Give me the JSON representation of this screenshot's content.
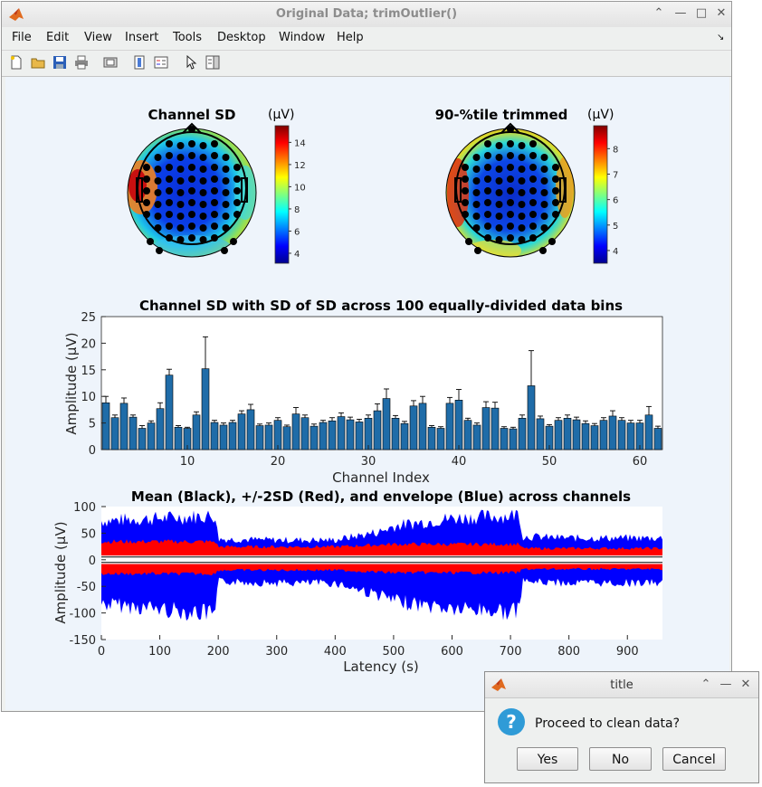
{
  "window": {
    "title": "Original Data; trimOutlier()",
    "menu": [
      "File",
      "Edit",
      "View",
      "Insert",
      "Tools",
      "Desktop",
      "Window",
      "Help"
    ],
    "toolbar_icons": [
      "new-figure-icon",
      "open-file-icon",
      "save-icon",
      "print-icon",
      "print-preview-icon",
      "colorbar-icon",
      "legend-icon",
      "pointer-icon",
      "property-editor-icon"
    ],
    "title_buttons": [
      "minimize-icon",
      "restore-icon",
      "maximize-icon",
      "close-icon"
    ]
  },
  "topo_left": {
    "title": "Channel SD",
    "unit": "(μV)",
    "colorbar_ticks": [
      "14",
      "12",
      "10",
      "8",
      "6",
      "4"
    ]
  },
  "topo_right": {
    "title": "90-%tile trimmed",
    "unit": "(μV)",
    "colorbar_ticks": [
      "8",
      "7",
      "6",
      "5",
      "4"
    ]
  },
  "chart_data": [
    {
      "type": "bar",
      "title": "Channel SD with SD of SD across 100 equally-divided data bins",
      "xlabel": "Channel Index",
      "ylabel": "Amplitude (μV)",
      "xlim": [
        0.5,
        62.5
      ],
      "ylim": [
        0,
        25
      ],
      "xticks": [
        10,
        20,
        30,
        40,
        50,
        60
      ],
      "yticks": [
        0,
        5,
        10,
        15,
        20,
        25
      ],
      "values": [
        8.8,
        6.0,
        8.7,
        6.1,
        4.0,
        5.0,
        7.7,
        14.0,
        4.2,
        4.0,
        6.5,
        15.2,
        5.1,
        4.6,
        5.1,
        6.7,
        7.5,
        4.5,
        4.6,
        5.5,
        4.3,
        6.7,
        6.0,
        4.4,
        5.1,
        5.4,
        6.2,
        5.6,
        5.2,
        5.9,
        7.3,
        9.6,
        5.9,
        4.9,
        8.2,
        8.7,
        4.2,
        4.0,
        8.7,
        9.3,
        5.5,
        4.6,
        7.9,
        7.8,
        4.0,
        3.9,
        5.9,
        12.0,
        5.8,
        4.4,
        5.5,
        5.9,
        5.6,
        4.9,
        4.5,
        5.5,
        6.3,
        5.5,
        5.0,
        5.0,
        6.5,
        4.0
      ],
      "errors": [
        1.2,
        0.5,
        1.0,
        0.4,
        0.5,
        0.4,
        1.1,
        1.1,
        0.3,
        0.2,
        0.6,
        6.0,
        0.4,
        0.4,
        0.4,
        0.6,
        1.0,
        0.3,
        0.4,
        0.5,
        0.3,
        1.2,
        0.5,
        0.4,
        0.4,
        0.6,
        0.7,
        0.5,
        0.5,
        0.6,
        1.3,
        1.8,
        0.5,
        0.4,
        1.0,
        1.3,
        0.3,
        0.3,
        1.1,
        2.0,
        0.4,
        0.4,
        1.1,
        1.1,
        0.3,
        0.3,
        0.6,
        6.6,
        0.5,
        0.3,
        0.5,
        0.6,
        0.5,
        0.5,
        0.4,
        0.5,
        1.0,
        0.5,
        0.5,
        0.5,
        1.6,
        0.4
      ]
    },
    {
      "type": "area",
      "title": "Mean (Black), +/-2SD (Red), and envelope (Blue) across channels",
      "xlabel": "Latency (s)",
      "ylabel": "Amplitude (μV)",
      "xlim": [
        0,
        960
      ],
      "ylim": [
        -150,
        100
      ],
      "xticks": [
        0,
        100,
        200,
        300,
        400,
        500,
        600,
        700,
        800,
        900
      ],
      "yticks": [
        100,
        50,
        0,
        -50,
        -100,
        -150
      ],
      "series": [
        {
          "name": "Mean (Black)",
          "color": "#000000",
          "x": [
            0,
            960
          ],
          "values": [
            0,
            0
          ]
        },
        {
          "name": "+/-2SD (Red)",
          "color": "#ff0000",
          "x": [
            0,
            100,
            195,
            200,
            300,
            400,
            500,
            600,
            700,
            715,
            720,
            800,
            900,
            960
          ],
          "upper": [
            35,
            35,
            35,
            25,
            25,
            25,
            30,
            30,
            30,
            30,
            22,
            22,
            22,
            22
          ],
          "lower": [
            -27,
            -27,
            -27,
            -20,
            -20,
            -20,
            -25,
            -25,
            -25,
            -25,
            -18,
            -18,
            -18,
            -18
          ]
        },
        {
          "name": "Envelope (Blue)",
          "color": "#0000ff",
          "x": [
            0,
            100,
            195,
            200,
            300,
            400,
            480,
            500,
            600,
            700,
            715,
            720,
            800,
            900,
            960
          ],
          "upper": [
            75,
            80,
            85,
            40,
            38,
            38,
            55,
            65,
            80,
            85,
            90,
            45,
            42,
            42,
            42
          ],
          "lower": [
            -85,
            -95,
            -105,
            -42,
            -45,
            -45,
            -70,
            -80,
            -95,
            -100,
            -100,
            -42,
            -45,
            -45,
            -45
          ]
        }
      ]
    }
  ],
  "dialog": {
    "title": "title",
    "message": "Proceed to clean data?",
    "buttons": [
      "Yes",
      "No",
      "Cancel"
    ]
  }
}
